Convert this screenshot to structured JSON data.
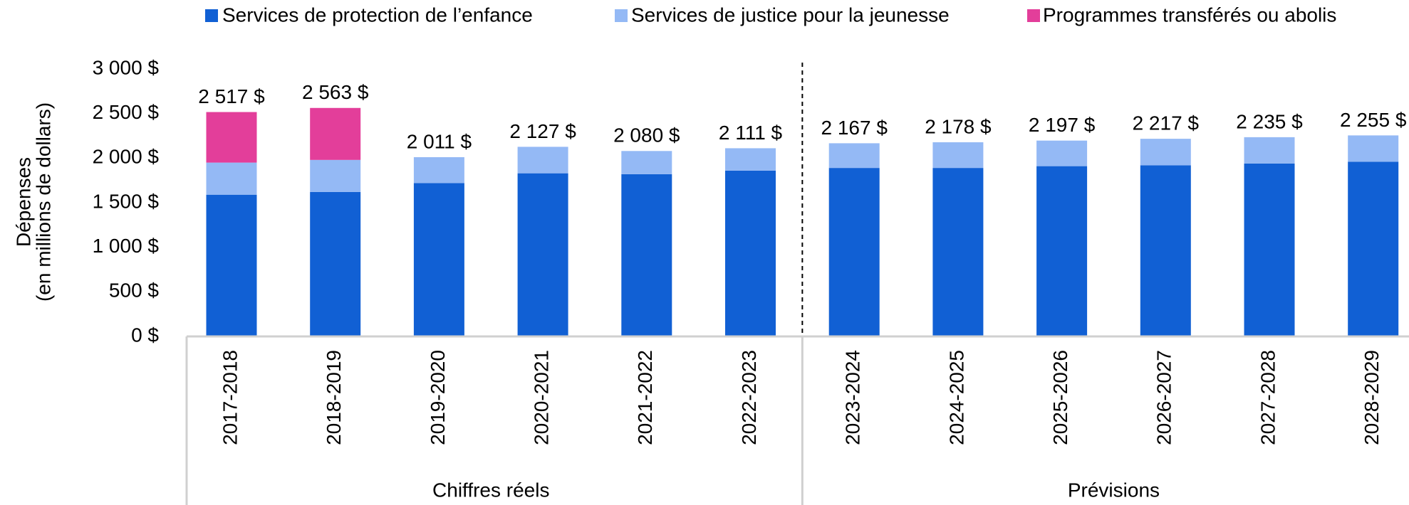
{
  "chart_data": {
    "type": "stacked_bar",
    "ylabel": [
      "Dépenses",
      "(en millions de dollars)"
    ],
    "categories": [
      "2017-2018",
      "2018-2019",
      "2019-2020",
      "2020-2021",
      "2021-2022",
      "2022-2023",
      "2023-2024",
      "2024-2025",
      "2025-2026",
      "2026-2027",
      "2027-2028",
      "2028-2029"
    ],
    "groups": [
      {
        "label": "Chiffres réels",
        "start": 0,
        "end": 5
      },
      {
        "label": "Prévisions",
        "start": 6,
        "end": 11
      }
    ],
    "series": [
      {
        "name": "Services de protection de l’enfance",
        "color": "#1160d4",
        "values": [
          1590,
          1620,
          1720,
          1830,
          1820,
          1860,
          1890,
          1890,
          1910,
          1920,
          1940,
          1960
        ]
      },
      {
        "name": "Services de justice pour la jeunesse",
        "color": "#94b9f5",
        "values": [
          360,
          360,
          291,
          297,
          260,
          251,
          277,
          288,
          287,
          297,
          295,
          295
        ]
      },
      {
        "name": "Programmes transférés ou abolis",
        "color": "#e33e9a",
        "values": [
          567,
          583,
          null,
          null,
          null,
          null,
          null,
          null,
          null,
          null,
          null,
          null
        ]
      }
    ],
    "totals": [
      2517,
      2563,
      2011,
      2127,
      2080,
      2111,
      2167,
      2178,
      2197,
      2217,
      2235,
      2255
    ],
    "total_labels": [
      "2 517 $",
      "2 563 $",
      "2 011 $",
      "2 127 $",
      "2 080 $",
      "2 111 $",
      "2 167 $",
      "2 178 $",
      "2 197 $",
      "2 217 $",
      "2 235 $",
      "2 255 $"
    ],
    "ylim": [
      0,
      3000
    ],
    "yticks": [
      {
        "value": 0,
        "label": "0 $"
      },
      {
        "value": 500,
        "label": "500 $"
      },
      {
        "value": 1000,
        "label": "1 000 $"
      },
      {
        "value": 1500,
        "label": "1 500 $"
      },
      {
        "value": 2000,
        "label": "2 000 $"
      },
      {
        "value": 2500,
        "label": "2 500 $"
      },
      {
        "value": 3000,
        "label": "3 000 $"
      }
    ],
    "grid": false
  }
}
